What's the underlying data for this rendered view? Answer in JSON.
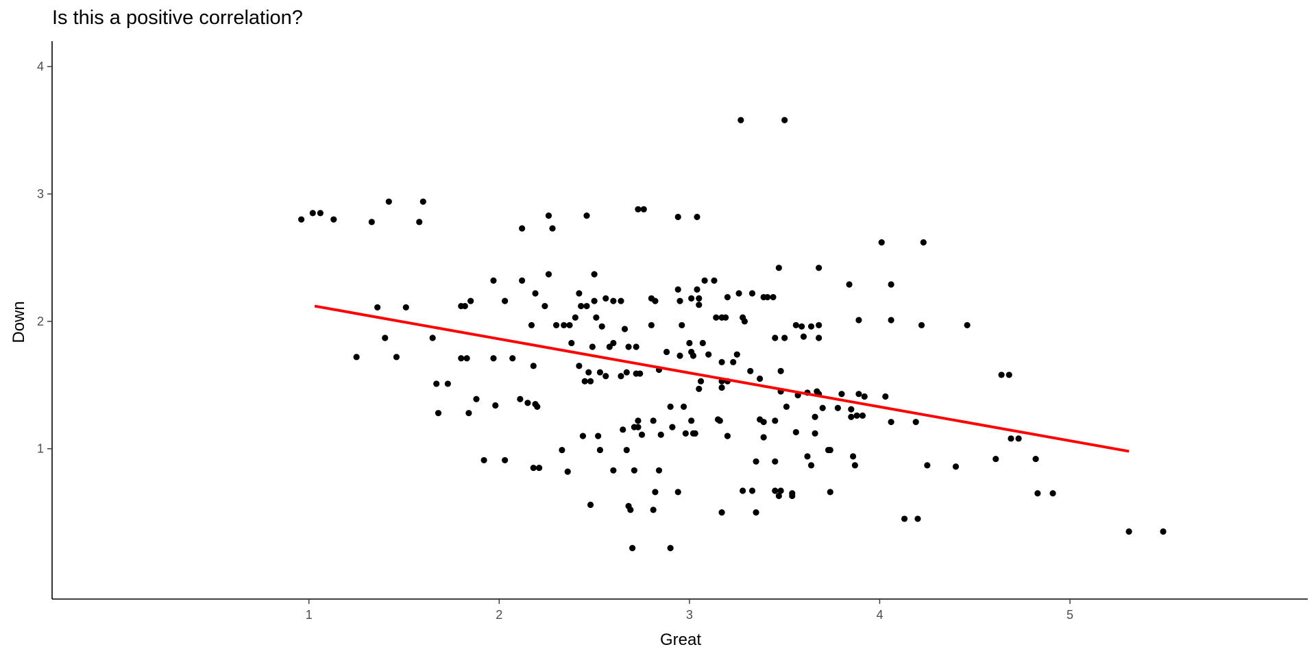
{
  "chart_data": {
    "type": "scatter",
    "title": "Is this a positive correlation?",
    "xlabel": "Great",
    "ylabel": "Down",
    "xlim": [
      -0.35,
      6.25
    ],
    "ylim": [
      -0.18,
      4.2
    ],
    "x_ticks": [
      "1",
      "2",
      "3",
      "4",
      "5"
    ],
    "y_ticks": [
      "1",
      "2",
      "3",
      "4"
    ],
    "grid": false,
    "legend": "none",
    "point_color": "#000000",
    "line_color": "#ff0000",
    "points": [
      [
        0.96,
        2.8
      ],
      [
        1.02,
        2.85
      ],
      [
        1.06,
        2.85
      ],
      [
        1.13,
        2.8
      ],
      [
        1.33,
        2.78
      ],
      [
        1.42,
        2.94
      ],
      [
        1.58,
        2.78
      ],
      [
        1.6,
        2.94
      ],
      [
        1.36,
        2.11
      ],
      [
        1.51,
        2.11
      ],
      [
        1.4,
        1.87
      ],
      [
        1.46,
        1.72
      ],
      [
        1.25,
        1.72
      ],
      [
        1.65,
        1.87
      ],
      [
        1.67,
        1.51
      ],
      [
        1.73,
        1.51
      ],
      [
        1.68,
        1.28
      ],
      [
        1.8,
        2.12
      ],
      [
        1.82,
        2.12
      ],
      [
        1.85,
        2.16
      ],
      [
        1.8,
        1.71
      ],
      [
        1.83,
        1.71
      ],
      [
        1.84,
        1.28
      ],
      [
        1.88,
        1.39
      ],
      [
        1.92,
        0.91
      ],
      [
        1.97,
        2.32
      ],
      [
        2.03,
        2.16
      ],
      [
        1.97,
        1.71
      ],
      [
        2.07,
        1.71
      ],
      [
        1.98,
        1.34
      ],
      [
        2.03,
        0.91
      ],
      [
        2.12,
        2.73
      ],
      [
        2.12,
        2.32
      ],
      [
        2.19,
        2.22
      ],
      [
        2.17,
        1.97
      ],
      [
        2.24,
        2.12
      ],
      [
        2.18,
        1.65
      ],
      [
        2.11,
        1.39
      ],
      [
        2.15,
        1.36
      ],
      [
        2.19,
        1.35
      ],
      [
        2.2,
        1.33
      ],
      [
        2.18,
        0.85
      ],
      [
        2.21,
        0.85
      ],
      [
        2.26,
        2.83
      ],
      [
        2.28,
        2.73
      ],
      [
        2.26,
        2.37
      ],
      [
        2.3,
        1.97
      ],
      [
        2.34,
        1.97
      ],
      [
        2.37,
        1.97
      ],
      [
        2.38,
        1.83
      ],
      [
        2.4,
        2.03
      ],
      [
        2.42,
        2.22
      ],
      [
        2.43,
        2.12
      ],
      [
        2.46,
        2.12
      ],
      [
        2.42,
        1.65
      ],
      [
        2.45,
        1.53
      ],
      [
        2.48,
        1.53
      ],
      [
        2.47,
        1.6
      ],
      [
        2.33,
        0.99
      ],
      [
        2.36,
        0.82
      ],
      [
        2.44,
        1.1
      ],
      [
        2.46,
        2.83
      ],
      [
        2.5,
        2.37
      ],
      [
        2.5,
        2.16
      ],
      [
        2.51,
        2.03
      ],
      [
        2.49,
        1.8
      ],
      [
        2.54,
        1.96
      ],
      [
        2.56,
        2.18
      ],
      [
        2.6,
        2.16
      ],
      [
        2.64,
        2.16
      ],
      [
        2.53,
        1.6
      ],
      [
        2.56,
        1.57
      ],
      [
        2.58,
        1.8
      ],
      [
        2.6,
        1.83
      ],
      [
        2.64,
        1.57
      ],
      [
        2.66,
        1.94
      ],
      [
        2.68,
        1.8
      ],
      [
        2.72,
        1.8
      ],
      [
        2.67,
        1.6
      ],
      [
        2.72,
        1.59
      ],
      [
        2.74,
        1.59
      ],
      [
        2.52,
        1.1
      ],
      [
        2.53,
        0.99
      ],
      [
        2.48,
        0.56
      ],
      [
        2.6,
        0.83
      ],
      [
        2.65,
        1.15
      ],
      [
        2.67,
        0.99
      ],
      [
        2.68,
        0.55
      ],
      [
        2.69,
        0.52
      ],
      [
        2.71,
        1.17
      ],
      [
        2.73,
        1.17
      ],
      [
        2.73,
        1.22
      ],
      [
        2.75,
        1.11
      ],
      [
        2.71,
        0.83
      ],
      [
        2.7,
        0.22
      ],
      [
        2.73,
        2.88
      ],
      [
        2.76,
        2.88
      ],
      [
        2.8,
        2.18
      ],
      [
        2.82,
        2.16
      ],
      [
        2.8,
        1.97
      ],
      [
        2.81,
        1.22
      ],
      [
        2.81,
        0.52
      ],
      [
        2.82,
        0.66
      ],
      [
        2.84,
        0.83
      ],
      [
        2.84,
        1.62
      ],
      [
        2.85,
        1.11
      ],
      [
        2.88,
        1.76
      ],
      [
        2.9,
        1.33
      ],
      [
        2.91,
        1.17
      ],
      [
        2.9,
        0.22
      ],
      [
        2.94,
        2.82
      ],
      [
        2.94,
        2.25
      ],
      [
        2.95,
        2.16
      ],
      [
        2.96,
        1.97
      ],
      [
        2.95,
        1.73
      ],
      [
        2.97,
        1.33
      ],
      [
        2.98,
        1.12
      ],
      [
        2.94,
        0.66
      ],
      [
        3.01,
        2.18
      ],
      [
        3.01,
        1.76
      ],
      [
        3.02,
        1.73
      ],
      [
        3.0,
        1.83
      ],
      [
        3.01,
        1.22
      ],
      [
        3.02,
        1.12
      ],
      [
        3.03,
        1.12
      ],
      [
        3.04,
        2.82
      ],
      [
        3.04,
        2.25
      ],
      [
        3.05,
        2.18
      ],
      [
        3.05,
        2.13
      ],
      [
        3.05,
        1.47
      ],
      [
        3.06,
        1.53
      ],
      [
        3.08,
        2.32
      ],
      [
        3.07,
        1.83
      ],
      [
        3.1,
        1.74
      ],
      [
        3.13,
        2.32
      ],
      [
        3.14,
        2.03
      ],
      [
        3.15,
        1.23
      ],
      [
        3.16,
        1.22
      ],
      [
        3.17,
        2.03
      ],
      [
        3.17,
        1.68
      ],
      [
        3.17,
        1.53
      ],
      [
        3.17,
        1.48
      ],
      [
        3.17,
        0.5
      ],
      [
        3.19,
        2.03
      ],
      [
        3.2,
        1.53
      ],
      [
        3.2,
        1.1
      ],
      [
        3.2,
        2.19
      ],
      [
        3.23,
        1.68
      ],
      [
        3.25,
        1.74
      ],
      [
        3.26,
        2.22
      ],
      [
        3.27,
        3.58
      ],
      [
        3.28,
        2.03
      ],
      [
        3.29,
        2.0
      ],
      [
        3.28,
        0.67
      ],
      [
        3.32,
        1.61
      ],
      [
        3.33,
        0.67
      ],
      [
        3.33,
        2.22
      ],
      [
        3.35,
        0.9
      ],
      [
        3.35,
        0.5
      ],
      [
        3.37,
        1.55
      ],
      [
        3.37,
        1.23
      ],
      [
        3.39,
        1.21
      ],
      [
        3.39,
        1.09
      ],
      [
        3.39,
        2.19
      ],
      [
        3.41,
        2.19
      ],
      [
        3.44,
        2.19
      ],
      [
        3.45,
        1.87
      ],
      [
        3.45,
        1.22
      ],
      [
        3.45,
        0.9
      ],
      [
        3.45,
        0.67
      ],
      [
        3.47,
        0.63
      ],
      [
        3.48,
        1.45
      ],
      [
        3.48,
        0.67
      ],
      [
        3.47,
        2.42
      ],
      [
        3.48,
        1.61
      ],
      [
        3.5,
        3.58
      ],
      [
        3.5,
        1.87
      ],
      [
        3.51,
        1.33
      ],
      [
        3.54,
        0.65
      ],
      [
        3.54,
        0.63
      ],
      [
        3.56,
        1.97
      ],
      [
        3.56,
        1.13
      ],
      [
        3.57,
        1.42
      ],
      [
        3.59,
        1.96
      ],
      [
        3.6,
        1.88
      ],
      [
        3.62,
        1.44
      ],
      [
        3.62,
        0.94
      ],
      [
        3.64,
        1.96
      ],
      [
        3.64,
        0.87
      ],
      [
        3.66,
        1.25
      ],
      [
        3.66,
        1.12
      ],
      [
        3.67,
        1.45
      ],
      [
        3.68,
        1.97
      ],
      [
        3.68,
        1.87
      ],
      [
        3.68,
        2.42
      ],
      [
        3.68,
        1.43
      ],
      [
        3.7,
        1.32
      ],
      [
        3.73,
        0.99
      ],
      [
        3.74,
        0.99
      ],
      [
        3.74,
        0.66
      ],
      [
        3.78,
        1.32
      ],
      [
        3.8,
        1.43
      ],
      [
        3.84,
        2.29
      ],
      [
        3.85,
        1.31
      ],
      [
        3.85,
        1.25
      ],
      [
        3.86,
        0.94
      ],
      [
        3.87,
        0.87
      ],
      [
        3.88,
        1.26
      ],
      [
        3.89,
        1.43
      ],
      [
        3.89,
        2.01
      ],
      [
        3.91,
        1.26
      ],
      [
        3.92,
        1.41
      ],
      [
        4.01,
        2.62
      ],
      [
        4.03,
        1.41
      ],
      [
        4.06,
        2.29
      ],
      [
        4.06,
        2.01
      ],
      [
        4.06,
        1.21
      ],
      [
        4.13,
        0.45
      ],
      [
        4.19,
        1.21
      ],
      [
        4.2,
        0.45
      ],
      [
        4.22,
        1.97
      ],
      [
        4.23,
        2.62
      ],
      [
        4.25,
        0.87
      ],
      [
        4.4,
        0.86
      ],
      [
        4.46,
        1.97
      ],
      [
        4.61,
        0.92
      ],
      [
        4.64,
        1.58
      ],
      [
        4.68,
        1.58
      ],
      [
        4.69,
        1.08
      ],
      [
        4.73,
        1.08
      ],
      [
        4.82,
        0.92
      ],
      [
        4.83,
        0.65
      ],
      [
        4.91,
        0.65
      ],
      [
        5.31,
        0.35
      ],
      [
        5.49,
        0.35
      ]
    ],
    "fit_line": {
      "x": [
        1.03,
        5.31
      ],
      "y": [
        2.12,
        0.98
      ]
    }
  }
}
